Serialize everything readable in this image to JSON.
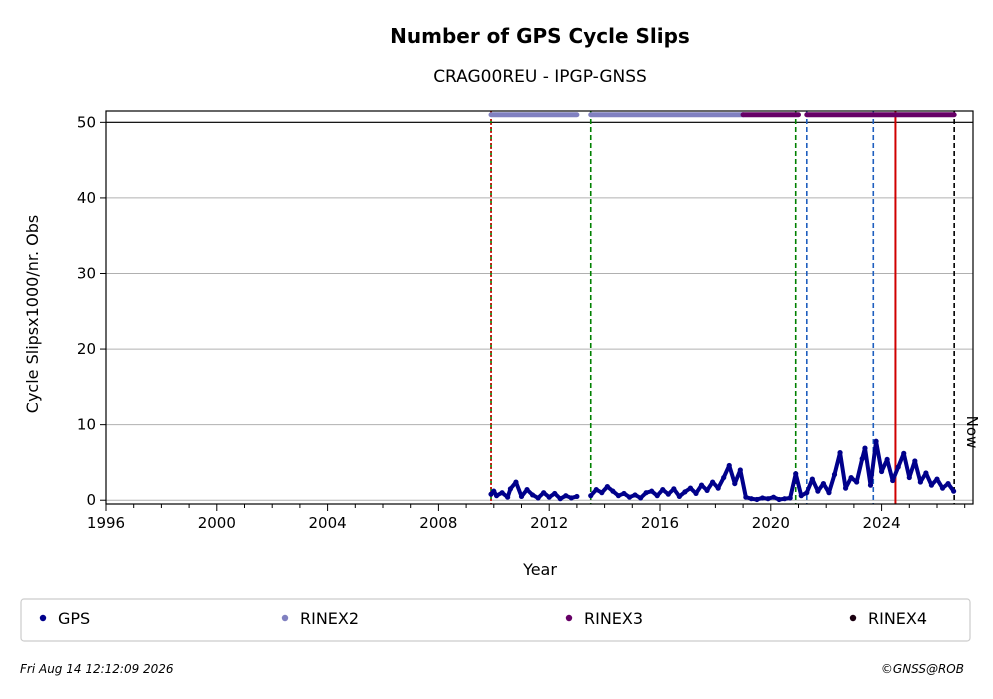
{
  "chart_data": {
    "type": "scatter",
    "title": "Number of GPS Cycle Slips",
    "subtitle": "CRAG00REU - IPGP-GNSS",
    "xlabel": "Year",
    "ylabel": "Cycle Slipsx1000/nr. Obs",
    "xlim": [
      1996,
      2027.3
    ],
    "ylim": [
      -0.5,
      51.5
    ],
    "xticks": [
      1996,
      2000,
      2004,
      2008,
      2012,
      2016,
      2020,
      2024
    ],
    "xtick_labels": [
      "1996",
      "2000",
      "2004",
      "2008",
      "2012",
      "2016",
      "2020",
      "2024"
    ],
    "yticks": [
      0,
      10,
      20,
      30,
      40,
      50
    ],
    "ytick_labels": [
      "0",
      "10",
      "20",
      "30",
      "40",
      "50"
    ],
    "grid": "horizontal",
    "reference_line_y": 50,
    "now_label": "Now",
    "now_x": 2026.62,
    "vlines": [
      {
        "x": 2009.9,
        "style": "dashed",
        "color": "#008000"
      },
      {
        "x": 2009.9,
        "style": "dotted",
        "color": "#d00000"
      },
      {
        "x": 2013.5,
        "style": "dashed",
        "color": "#008000"
      },
      {
        "x": 2020.9,
        "style": "dashed",
        "color": "#008000"
      },
      {
        "x": 2021.3,
        "style": "dashed",
        "color": "#1f5fbf"
      },
      {
        "x": 2023.7,
        "style": "dashed",
        "color": "#1f5fbf"
      },
      {
        "x": 2024.5,
        "style": "solid",
        "color": "#d00000"
      },
      {
        "x": 2026.62,
        "style": "dashed",
        "color": "#000000"
      }
    ],
    "format_bars": [
      {
        "format": "RINEX2",
        "color": "#8080c0",
        "y": 51,
        "ranges": [
          [
            2009.9,
            2013.0
          ],
          [
            2013.5,
            2019.0
          ]
        ]
      },
      {
        "format": "RINEX3",
        "color": "#660066",
        "y": 51,
        "ranges": [
          [
            2019.0,
            2021.0
          ],
          [
            2021.3,
            2026.62
          ]
        ]
      }
    ],
    "series": [
      {
        "name": "GPS",
        "color": "#00008b",
        "points": [
          [
            2009.9,
            0.8
          ],
          [
            2010.0,
            1.2
          ],
          [
            2010.1,
            0.6
          ],
          [
            2010.3,
            1.0
          ],
          [
            2010.5,
            0.4
          ],
          [
            2010.6,
            1.5
          ],
          [
            2010.8,
            2.4
          ],
          [
            2011.0,
            0.5
          ],
          [
            2011.2,
            1.4
          ],
          [
            2011.4,
            0.7
          ],
          [
            2011.6,
            0.3
          ],
          [
            2011.8,
            1.0
          ],
          [
            2012.0,
            0.4
          ],
          [
            2012.2,
            0.9
          ],
          [
            2012.4,
            0.2
          ],
          [
            2012.6,
            0.6
          ],
          [
            2012.8,
            0.3
          ],
          [
            2013.0,
            0.5
          ],
          [
            2013.5,
            0.6
          ],
          [
            2013.7,
            1.4
          ],
          [
            2013.9,
            1.0
          ],
          [
            2014.1,
            1.8
          ],
          [
            2014.3,
            1.2
          ],
          [
            2014.5,
            0.6
          ],
          [
            2014.7,
            0.9
          ],
          [
            2014.9,
            0.4
          ],
          [
            2015.1,
            0.7
          ],
          [
            2015.3,
            0.3
          ],
          [
            2015.5,
            1.0
          ],
          [
            2015.7,
            1.2
          ],
          [
            2015.9,
            0.6
          ],
          [
            2016.1,
            1.4
          ],
          [
            2016.3,
            0.8
          ],
          [
            2016.5,
            1.5
          ],
          [
            2016.7,
            0.5
          ],
          [
            2016.9,
            1.1
          ],
          [
            2017.1,
            1.6
          ],
          [
            2017.3,
            0.9
          ],
          [
            2017.5,
            2.0
          ],
          [
            2017.7,
            1.3
          ],
          [
            2017.9,
            2.4
          ],
          [
            2018.1,
            1.6
          ],
          [
            2018.3,
            3.0
          ],
          [
            2018.5,
            4.6
          ],
          [
            2018.7,
            2.2
          ],
          [
            2018.9,
            4.0
          ],
          [
            2019.1,
            0.4
          ],
          [
            2019.3,
            0.2
          ],
          [
            2019.5,
            0.1
          ],
          [
            2019.7,
            0.3
          ],
          [
            2019.9,
            0.2
          ],
          [
            2020.1,
            0.4
          ],
          [
            2020.3,
            0.1
          ],
          [
            2020.5,
            0.2
          ],
          [
            2020.7,
            0.3
          ],
          [
            2020.9,
            3.5
          ],
          [
            2021.1,
            0.6
          ],
          [
            2021.3,
            1.0
          ],
          [
            2021.5,
            2.8
          ],
          [
            2021.7,
            1.2
          ],
          [
            2021.9,
            2.2
          ],
          [
            2022.1,
            1.0
          ],
          [
            2022.3,
            3.4
          ],
          [
            2022.5,
            6.3
          ],
          [
            2022.7,
            1.6
          ],
          [
            2022.9,
            3.0
          ],
          [
            2023.1,
            2.4
          ],
          [
            2023.3,
            5.5
          ],
          [
            2023.4,
            6.9
          ],
          [
            2023.6,
            2.0
          ],
          [
            2023.8,
            7.8
          ],
          [
            2024.0,
            3.8
          ],
          [
            2024.2,
            5.4
          ],
          [
            2024.4,
            2.6
          ],
          [
            2024.6,
            4.4
          ],
          [
            2024.8,
            6.2
          ],
          [
            2025.0,
            3.0
          ],
          [
            2025.2,
            5.2
          ],
          [
            2025.4,
            2.4
          ],
          [
            2025.6,
            3.6
          ],
          [
            2025.8,
            2.0
          ],
          [
            2026.0,
            2.8
          ],
          [
            2026.2,
            1.6
          ],
          [
            2026.4,
            2.2
          ],
          [
            2026.6,
            1.2
          ]
        ]
      }
    ],
    "legend": [
      {
        "label": "GPS",
        "color": "#00008b"
      },
      {
        "label": "RINEX2",
        "color": "#8080c0"
      },
      {
        "label": "RINEX3",
        "color": "#660066"
      },
      {
        "label": "RINEX4",
        "color": "#1a0010"
      }
    ],
    "legend_position": "bottom"
  },
  "footer": {
    "timestamp": "Fri Aug 14 12:12:09 2026",
    "credit": "©GNSS@ROB"
  }
}
